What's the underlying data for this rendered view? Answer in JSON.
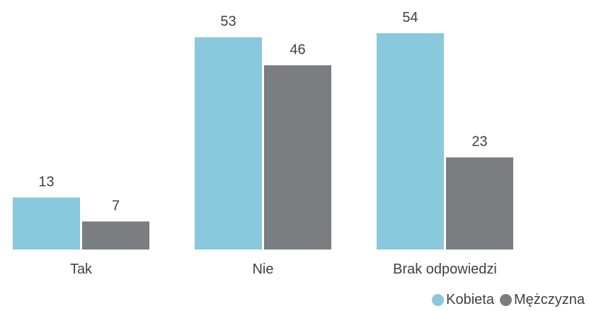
{
  "chart_data": {
    "type": "bar",
    "categories": [
      "Tak",
      "Nie",
      "Brak odpowiedzi"
    ],
    "series": [
      {
        "name": "Kobieta",
        "values": [
          13,
          53,
          54
        ],
        "color": "#89C8DD"
      },
      {
        "name": "Mężczyzna",
        "values": [
          7,
          46,
          23
        ],
        "color": "#7B7E80"
      }
    ],
    "ylim": [
      0,
      54
    ],
    "grid": false,
    "legend_position": "bottom-right",
    "data_labels": true
  }
}
